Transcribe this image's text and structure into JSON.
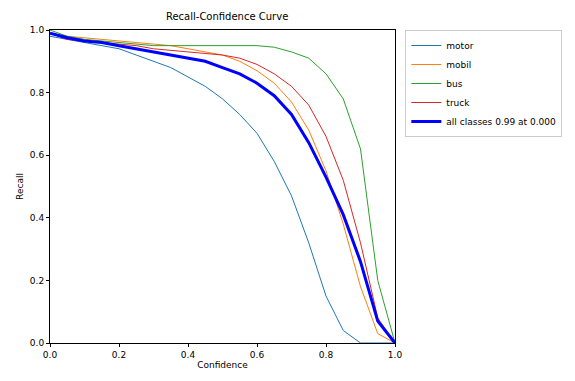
{
  "chart_data": {
    "type": "line",
    "title": "Recall-Confidence Curve",
    "x_label": "Confidence",
    "y_label": "Recall",
    "x": [
      0,
      0.05,
      0.1,
      0.15,
      0.2,
      0.25,
      0.3,
      0.35,
      0.4,
      0.45,
      0.5,
      0.55,
      0.6,
      0.65,
      0.7,
      0.75,
      0.8,
      0.85,
      0.9,
      0.95,
      1.0
    ],
    "series": [
      {
        "name": "motor",
        "color": "#1f77b4",
        "values": [
          0.98,
          0.97,
          0.96,
          0.95,
          0.94,
          0.92,
          0.9,
          0.88,
          0.85,
          0.82,
          0.78,
          0.73,
          0.67,
          0.58,
          0.47,
          0.32,
          0.15,
          0.04,
          0.0,
          0.0,
          0.0
        ]
      },
      {
        "name": "mobil",
        "color": "#ff7f0e",
        "values": [
          0.99,
          0.98,
          0.975,
          0.97,
          0.965,
          0.96,
          0.955,
          0.95,
          0.94,
          0.93,
          0.92,
          0.9,
          0.87,
          0.83,
          0.77,
          0.68,
          0.55,
          0.38,
          0.18,
          0.03,
          0.0
        ]
      },
      {
        "name": "bus",
        "color": "#2ca02c",
        "values": [
          1.0,
          0.98,
          0.97,
          0.965,
          0.96,
          0.955,
          0.95,
          0.95,
          0.95,
          0.95,
          0.95,
          0.95,
          0.95,
          0.945,
          0.93,
          0.91,
          0.86,
          0.78,
          0.62,
          0.2,
          0.0
        ]
      },
      {
        "name": "truck",
        "color": "#d62728",
        "values": [
          0.99,
          0.97,
          0.965,
          0.96,
          0.955,
          0.95,
          0.94,
          0.935,
          0.93,
          0.925,
          0.92,
          0.91,
          0.89,
          0.86,
          0.82,
          0.76,
          0.66,
          0.52,
          0.32,
          0.08,
          0.0
        ]
      },
      {
        "name": "all classes 0.99 at 0.000",
        "color": "#0000ff",
        "values": [
          0.99,
          0.975,
          0.965,
          0.96,
          0.95,
          0.94,
          0.93,
          0.92,
          0.91,
          0.9,
          0.88,
          0.86,
          0.83,
          0.79,
          0.73,
          0.64,
          0.53,
          0.41,
          0.26,
          0.07,
          0.0
        ]
      }
    ],
    "xlim": [
      0,
      1.0
    ],
    "ylim": [
      0,
      1.0
    ],
    "xticks": [
      {
        "value": 0,
        "label": "0.0"
      },
      0.2,
      0.4,
      0.6,
      0.8,
      {
        "value": 1.0,
        "label": "1.0"
      }
    ],
    "yticks": [
      {
        "value": 0,
        "label": "0.0"
      },
      0.2,
      0.4,
      0.6,
      0.8,
      {
        "value": 1.0,
        "label": "1.0"
      }
    ],
    "grid": false,
    "legend": "right"
  }
}
